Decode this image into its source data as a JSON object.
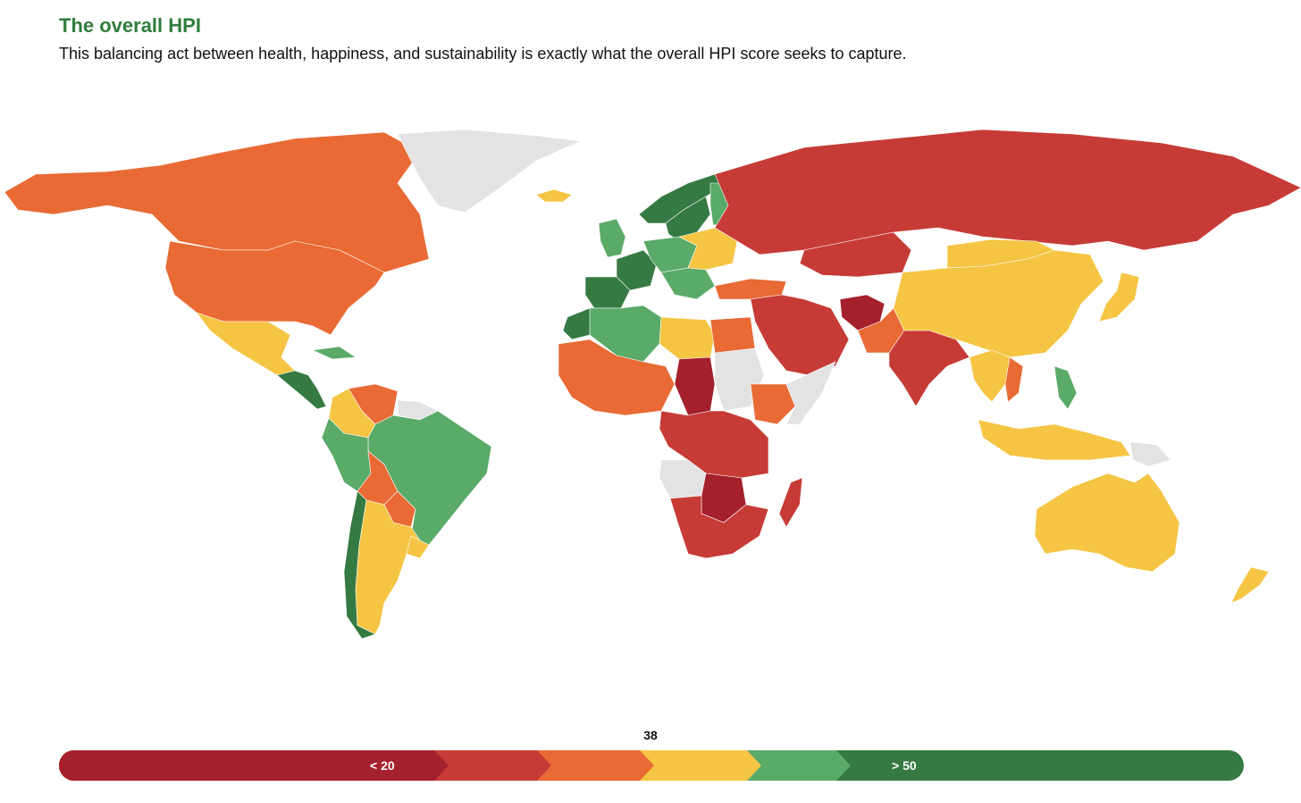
{
  "header": {
    "title": "The overall HPI",
    "subtitle": "This balancing act between health, happiness, and sustainability is exactly what the overall HPI score seeks to capture."
  },
  "colors": {
    "band1": "#a5202d",
    "band2": "#c73b36",
    "band3": "#e96a35",
    "band4": "#f5c543",
    "band5": "#5aaa68",
    "band6": "#357a43",
    "nodata": "#e3e3e3",
    "title": "#2f7d3b"
  },
  "legend": {
    "midpoint_label": "38",
    "low_label": "< 20",
    "high_label": "> 50"
  },
  "map": {
    "regions": [
      {
        "name": "Canada",
        "band": "band3"
      },
      {
        "name": "United States",
        "band": "band3"
      },
      {
        "name": "Greenland",
        "band": "nodata"
      },
      {
        "name": "Iceland",
        "band": "band4"
      },
      {
        "name": "Mexico",
        "band": "band4"
      },
      {
        "name": "Central America",
        "band": "band6"
      },
      {
        "name": "Cuba",
        "band": "band5"
      },
      {
        "name": "Venezuela",
        "band": "band3"
      },
      {
        "name": "Colombia",
        "band": "band4"
      },
      {
        "name": "Guianas",
        "band": "nodata"
      },
      {
        "name": "Brazil",
        "band": "band5"
      },
      {
        "name": "Peru",
        "band": "band5"
      },
      {
        "name": "Bolivia",
        "band": "band3"
      },
      {
        "name": "Paraguay",
        "band": "band3"
      },
      {
        "name": "Chile",
        "band": "band6"
      },
      {
        "name": "Argentina",
        "band": "band4"
      },
      {
        "name": "Uruguay",
        "band": "band4"
      },
      {
        "name": "Norway",
        "band": "band6"
      },
      {
        "name": "Sweden",
        "band": "band6"
      },
      {
        "name": "Finland",
        "band": "band5"
      },
      {
        "name": "United Kingdom",
        "band": "band5"
      },
      {
        "name": "France",
        "band": "band6"
      },
      {
        "name": "Iberia",
        "band": "band6"
      },
      {
        "name": "Central Europe",
        "band": "band5"
      },
      {
        "name": "Eastern Europe",
        "band": "band4"
      },
      {
        "name": "Balkans",
        "band": "band5"
      },
      {
        "name": "Russia",
        "band": "band2"
      },
      {
        "name": "Kazakhstan",
        "band": "band2"
      },
      {
        "name": "Turkey",
        "band": "band3"
      },
      {
        "name": "Middle East",
        "band": "band2"
      },
      {
        "name": "Afghanistan",
        "band": "band1"
      },
      {
        "name": "Pakistan",
        "band": "band3"
      },
      {
        "name": "India",
        "band": "band2"
      },
      {
        "name": "China",
        "band": "band4"
      },
      {
        "name": "Mongolia",
        "band": "band4"
      },
      {
        "name": "Japan",
        "band": "band4"
      },
      {
        "name": "Southeast Asia",
        "band": "band4"
      },
      {
        "name": "Vietnam",
        "band": "band3"
      },
      {
        "name": "Philippines",
        "band": "band5"
      },
      {
        "name": "Indonesia",
        "band": "band4"
      },
      {
        "name": "Papua New Guinea",
        "band": "nodata"
      },
      {
        "name": "Australia",
        "band": "band4"
      },
      {
        "name": "New Zealand",
        "band": "band4"
      },
      {
        "name": "Algeria",
        "band": "band5"
      },
      {
        "name": "Morocco",
        "band": "band6"
      },
      {
        "name": "Libya",
        "band": "band4"
      },
      {
        "name": "Egypt",
        "band": "band3"
      },
      {
        "name": "West Africa",
        "band": "band3"
      },
      {
        "name": "Chad",
        "band": "band1"
      },
      {
        "name": "Sudan",
        "band": "nodata"
      },
      {
        "name": "Ethiopia",
        "band": "band3"
      },
      {
        "name": "Somalia",
        "band": "nodata"
      },
      {
        "name": "Central Africa",
        "band": "band2"
      },
      {
        "name": "Angola",
        "band": "nodata"
      },
      {
        "name": "Zambia",
        "band": "band1"
      },
      {
        "name": "Southern Africa",
        "band": "band2"
      },
      {
        "name": "Madagascar",
        "band": "band2"
      }
    ]
  }
}
